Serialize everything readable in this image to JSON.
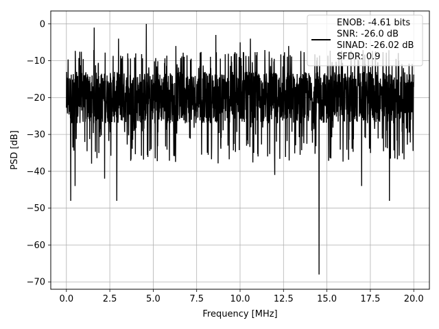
{
  "chart_data": {
    "type": "line",
    "title": "",
    "xlabel": "Frequency [MHz]",
    "ylabel": "PSD [dB]",
    "xlim": [
      -0.9,
      20.9
    ],
    "ylim": [
      -72,
      3.5
    ],
    "x_ticks": [
      0.0,
      2.5,
      5.0,
      7.5,
      10.0,
      12.5,
      15.0,
      17.5,
      20.0
    ],
    "x_tick_labels": [
      "0.0",
      "2.5",
      "5.0",
      "7.5",
      "10.0",
      "12.5",
      "15.0",
      "17.5",
      "20.0"
    ],
    "y_ticks": [
      0,
      -10,
      -20,
      -30,
      -40,
      -50,
      -60,
      -70
    ],
    "y_tick_labels": [
      "0",
      "−10",
      "−20",
      "−30",
      "−40",
      "−50",
      "−60",
      "−70"
    ],
    "grid": true,
    "legend_position": "top-right",
    "line_color": "#000000",
    "series": [
      {
        "legend_lines": [
          "ENOB: -4.61 bits",
          "SNR: -26.0 dB",
          "SINAD: -26.02 dB",
          "SFDR: 0.9"
        ],
        "x_range": [
          0.0,
          20.0
        ],
        "n_points": 2000,
        "typical_band_db": [
          -27,
          -13
        ],
        "peaks": [
          {
            "x": 1.6,
            "y": -1
          },
          {
            "x": 3.0,
            "y": -4
          },
          {
            "x": 4.6,
            "y": 0
          },
          {
            "x": 8.6,
            "y": -3
          },
          {
            "x": 10.6,
            "y": -4
          },
          {
            "x": 10.0,
            "y": -5
          },
          {
            "x": 12.8,
            "y": -6
          },
          {
            "x": 6.3,
            "y": -6
          }
        ],
        "dips": [
          {
            "x": 0.25,
            "y": -48
          },
          {
            "x": 2.9,
            "y": -48
          },
          {
            "x": 12.0,
            "y": -41
          },
          {
            "x": 14.55,
            "y": -68
          },
          {
            "x": 18.6,
            "y": -48
          },
          {
            "x": 17.0,
            "y": -44
          },
          {
            "x": 0.5,
            "y": -44
          },
          {
            "x": 2.2,
            "y": -42
          }
        ]
      }
    ]
  }
}
